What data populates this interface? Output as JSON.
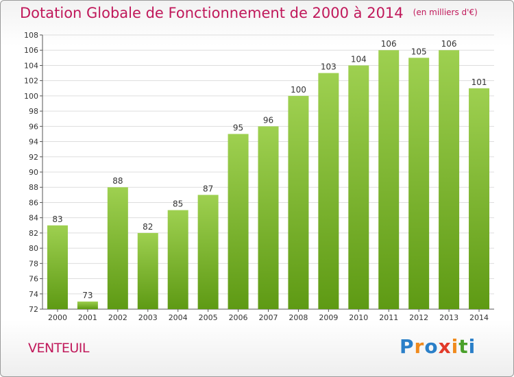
{
  "chart_data": {
    "type": "bar",
    "title": "Dotation Globale de Fonctionnement de 2000 à 2014",
    "subtitle": "(en milliers d'€)",
    "categories": [
      "2000",
      "2001",
      "2002",
      "2003",
      "2004",
      "2005",
      "2006",
      "2007",
      "2008",
      "2009",
      "2010",
      "2011",
      "2012",
      "2013",
      "2014"
    ],
    "values": [
      83,
      73,
      88,
      82,
      85,
      87,
      95,
      96,
      100,
      103,
      104,
      106,
      105,
      106,
      101
    ],
    "ylim": [
      72,
      108
    ],
    "yticks": [
      72,
      74,
      76,
      78,
      80,
      82,
      84,
      86,
      88,
      90,
      92,
      94,
      96,
      98,
      100,
      102,
      104,
      106,
      108
    ],
    "xlabel": "",
    "ylabel": "",
    "grid": true,
    "bar_color_top": "#9ed050",
    "bar_color_bottom": "#5e9a14"
  },
  "commune": "VENTEUIL",
  "logo": {
    "letters": [
      "P",
      "r",
      "o",
      "x",
      "i",
      "t",
      "i"
    ],
    "colors": [
      "#2a7fc8",
      "#f08a1c",
      "#2a7fc8",
      "#e23a2a",
      "#f08a1c",
      "#4aa02a",
      "#2a7fc8"
    ]
  },
  "colors": {
    "accent": "#c0185a",
    "grid": "#dddddd"
  }
}
